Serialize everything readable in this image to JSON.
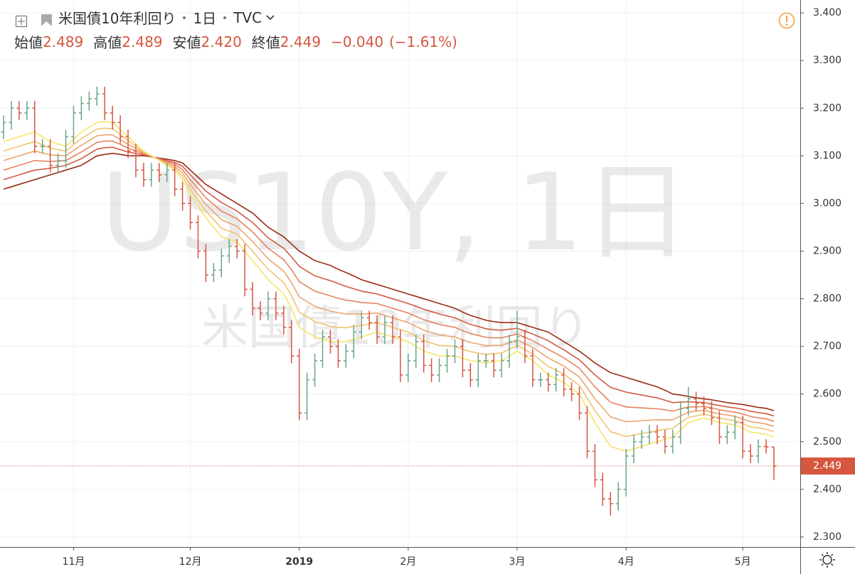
{
  "chart_data": {
    "type": "ohlc",
    "title": "米国債10年利回り",
    "interval": "1日",
    "source": "TVC",
    "watermark": "US10Y, 1日",
    "ohlc_legend": {
      "open_label": "始値",
      "open": 2.489,
      "high_label": "高値",
      "high": 2.489,
      "low_label": "安値",
      "low": {
        "value": 2.42,
        "label": "2.420"
      },
      "close_label": "終値",
      "close": 2.449,
      "change": {
        "value": -0.04,
        "label": "−0.040"
      },
      "change_pct": {
        "value": -1.61,
        "label": "(−1.61%)"
      }
    },
    "categories": [
      null,
      null,
      null,
      null,
      null,
      null,
      null,
      null,
      null,
      "11月",
      null,
      null,
      null,
      null,
      null,
      null,
      null,
      null,
      null,
      null,
      null,
      null,
      null,
      null,
      "12月",
      null,
      null,
      null,
      null,
      null,
      null,
      null,
      null,
      null,
      null,
      null,
      null,
      null,
      "2019",
      null,
      null,
      null,
      null,
      null,
      null,
      null,
      null,
      null,
      null,
      null,
      null,
      null,
      "2月",
      null,
      null,
      null,
      null,
      null,
      null,
      null,
      null,
      null,
      null,
      null,
      null,
      null,
      "3月",
      null,
      null,
      null,
      null,
      null,
      null,
      null,
      null,
      null,
      null,
      null,
      null,
      null,
      "4月",
      null,
      null,
      null,
      null,
      null,
      null,
      null,
      null,
      null,
      null,
      null,
      null,
      null,
      null,
      "5月",
      null,
      null,
      null,
      null
    ],
    "open": [
      3.15,
      3.17,
      3.2,
      3.19,
      3.2,
      3.12,
      3.12,
      3.08,
      3.09,
      3.14,
      3.19,
      3.21,
      3.22,
      3.23,
      3.19,
      3.17,
      3.14,
      3.11,
      3.07,
      3.05,
      3.07,
      3.06,
      3.07,
      3.03,
      3.0,
      2.96,
      2.9,
      2.85,
      2.86,
      2.89,
      2.91,
      2.9,
      2.82,
      2.78,
      2.77,
      2.8,
      2.77,
      2.74,
      2.68,
      2.56,
      2.63,
      2.67,
      2.72,
      2.7,
      2.67,
      2.69,
      2.73,
      2.76,
      2.75,
      2.72,
      2.75,
      2.72,
      2.64,
      2.67,
      2.71,
      2.66,
      2.64,
      2.66,
      2.68,
      2.7,
      2.65,
      2.63,
      2.67,
      2.67,
      2.65,
      2.67,
      2.71,
      2.72,
      2.68,
      2.63,
      2.63,
      2.62,
      2.64,
      2.61,
      2.6,
      2.56,
      2.48,
      2.42,
      2.38,
      2.37,
      2.4,
      2.47,
      2.5,
      2.51,
      2.52,
      2.51,
      2.49,
      2.51,
      2.57,
      2.59,
      2.58,
      2.57,
      2.55,
      2.51,
      2.52,
      2.54,
      2.48,
      2.47,
      2.49,
      2.489
    ],
    "high": [
      3.185,
      3.215,
      3.215,
      3.215,
      3.215,
      3.135,
      3.135,
      3.105,
      3.155,
      3.205,
      3.225,
      3.235,
      3.245,
      3.245,
      3.205,
      3.185,
      3.155,
      3.125,
      3.085,
      3.085,
      3.085,
      3.085,
      3.085,
      3.045,
      3.015,
      2.975,
      2.915,
      2.875,
      2.905,
      2.925,
      2.925,
      2.915,
      2.835,
      2.795,
      2.815,
      2.815,
      2.785,
      2.755,
      2.695,
      2.645,
      2.685,
      2.735,
      2.735,
      2.715,
      2.705,
      2.745,
      2.775,
      2.775,
      2.765,
      2.765,
      2.765,
      2.735,
      2.685,
      2.725,
      2.725,
      2.675,
      2.675,
      2.695,
      2.715,
      2.715,
      2.665,
      2.685,
      2.685,
      2.685,
      2.685,
      2.725,
      2.775,
      2.735,
      2.695,
      2.645,
      2.645,
      2.655,
      2.655,
      2.625,
      2.615,
      2.575,
      2.495,
      2.435,
      2.395,
      2.415,
      2.485,
      2.515,
      2.525,
      2.535,
      2.535,
      2.525,
      2.525,
      2.585,
      2.615,
      2.605,
      2.595,
      2.585,
      2.565,
      2.535,
      2.555,
      2.555,
      2.495,
      2.505,
      2.505,
      2.489
    ],
    "low": [
      3.135,
      3.155,
      3.175,
      3.175,
      3.105,
      3.105,
      3.065,
      3.065,
      3.075,
      3.125,
      3.175,
      3.195,
      3.205,
      3.175,
      3.155,
      3.125,
      3.095,
      3.055,
      3.035,
      3.035,
      3.045,
      3.045,
      3.015,
      2.985,
      2.945,
      2.885,
      2.835,
      2.835,
      2.845,
      2.875,
      2.885,
      2.805,
      2.765,
      2.755,
      2.755,
      2.755,
      2.725,
      2.665,
      2.545,
      2.545,
      2.615,
      2.655,
      2.685,
      2.655,
      2.655,
      2.675,
      2.715,
      2.735,
      2.705,
      2.705,
      2.705,
      2.625,
      2.625,
      2.655,
      2.645,
      2.625,
      2.625,
      2.645,
      2.665,
      2.635,
      2.615,
      2.615,
      2.655,
      2.635,
      2.635,
      2.655,
      2.695,
      2.665,
      2.615,
      2.615,
      2.605,
      2.605,
      2.595,
      2.585,
      2.545,
      2.465,
      2.405,
      2.365,
      2.345,
      2.355,
      2.385,
      2.455,
      2.485,
      2.495,
      2.495,
      2.475,
      2.475,
      2.495,
      2.555,
      2.565,
      2.555,
      2.535,
      2.495,
      2.495,
      2.505,
      2.465,
      2.455,
      2.455,
      2.475,
      2.42
    ],
    "close": [
      3.17,
      3.2,
      3.19,
      3.2,
      3.12,
      3.12,
      3.08,
      3.09,
      3.14,
      3.19,
      3.21,
      3.22,
      3.23,
      3.19,
      3.17,
      3.14,
      3.11,
      3.07,
      3.05,
      3.07,
      3.06,
      3.07,
      3.03,
      3.0,
      2.96,
      2.9,
      2.85,
      2.86,
      2.89,
      2.91,
      2.9,
      2.82,
      2.78,
      2.77,
      2.8,
      2.77,
      2.74,
      2.68,
      2.56,
      2.63,
      2.67,
      2.72,
      2.7,
      2.67,
      2.69,
      2.73,
      2.76,
      2.75,
      2.72,
      2.75,
      2.72,
      2.64,
      2.67,
      2.71,
      2.66,
      2.64,
      2.66,
      2.68,
      2.7,
      2.65,
      2.63,
      2.67,
      2.67,
      2.65,
      2.67,
      2.71,
      2.72,
      2.68,
      2.63,
      2.63,
      2.62,
      2.64,
      2.61,
      2.6,
      2.56,
      2.48,
      2.42,
      2.38,
      2.37,
      2.4,
      2.47,
      2.5,
      2.51,
      2.52,
      2.51,
      2.49,
      2.51,
      2.57,
      2.59,
      2.58,
      2.57,
      2.55,
      2.51,
      2.52,
      2.54,
      2.48,
      2.47,
      2.49,
      2.489,
      2.449
    ],
    "up_color": "#6aa584",
    "down_color": "#d5573f",
    "series": [
      {
        "color": "#f6e46a",
        "values": [
          3.13,
          3.135,
          3.14,
          3.145,
          3.15,
          3.14,
          3.13,
          3.125,
          3.12,
          3.135,
          3.15,
          3.16,
          3.17,
          3.172,
          3.17,
          3.155,
          3.14,
          3.125,
          3.11,
          3.1,
          3.09,
          3.08,
          3.07,
          3.05,
          3.02,
          2.995,
          2.97,
          2.95,
          2.93,
          2.925,
          2.92,
          2.9,
          2.88,
          2.86,
          2.84,
          2.825,
          2.81,
          2.78,
          2.74,
          2.73,
          2.72,
          2.715,
          2.71,
          2.71,
          2.71,
          2.715,
          2.72,
          2.725,
          2.73,
          2.725,
          2.72,
          2.715,
          2.71,
          2.7,
          2.69,
          2.685,
          2.68,
          2.68,
          2.68,
          2.675,
          2.67,
          2.668,
          2.665,
          2.668,
          2.67,
          2.68,
          2.69,
          2.68,
          2.67,
          2.655,
          2.64,
          2.632,
          2.625,
          2.612,
          2.6,
          2.57,
          2.54,
          2.515,
          2.49,
          2.485,
          2.48,
          2.485,
          2.49,
          2.495,
          2.5,
          2.505,
          2.51,
          2.525,
          2.54,
          2.545,
          2.55,
          2.545,
          2.54,
          2.538,
          2.535,
          2.528,
          2.52,
          2.518,
          2.515,
          2.51
        ]
      },
      {
        "color": "#f2c36e",
        "values": [
          3.11,
          3.115,
          3.12,
          3.125,
          3.13,
          3.123,
          3.116,
          3.113,
          3.11,
          3.123,
          3.136,
          3.146,
          3.156,
          3.158,
          3.157,
          3.145,
          3.132,
          3.12,
          3.108,
          3.1,
          3.091,
          3.083,
          3.074,
          3.057,
          3.03,
          3.007,
          2.984,
          2.966,
          2.948,
          2.942,
          2.936,
          2.918,
          2.9,
          2.881,
          2.862,
          2.848,
          2.834,
          2.807,
          2.772,
          2.762,
          2.752,
          2.747,
          2.742,
          2.74,
          2.739,
          2.742,
          2.744,
          2.747,
          2.75,
          2.745,
          2.74,
          2.735,
          2.73,
          2.721,
          2.712,
          2.707,
          2.702,
          2.701,
          2.7,
          2.694,
          2.689,
          2.686,
          2.683,
          2.685,
          2.686,
          2.694,
          2.702,
          2.693,
          2.684,
          2.671,
          2.658,
          2.65,
          2.642,
          2.63,
          2.618,
          2.592,
          2.565,
          2.543,
          2.521,
          2.516,
          2.511,
          2.514,
          2.517,
          2.52,
          2.523,
          2.526,
          2.528,
          2.54,
          2.551,
          2.554,
          2.558,
          2.554,
          2.549,
          2.547,
          2.544,
          2.538,
          2.531,
          2.529,
          2.526,
          2.521
        ]
      },
      {
        "color": "#eea46c",
        "values": [
          3.09,
          3.095,
          3.1,
          3.105,
          3.11,
          3.106,
          3.102,
          3.101,
          3.1,
          3.111,
          3.122,
          3.132,
          3.142,
          3.144,
          3.144,
          3.134,
          3.124,
          3.115,
          3.106,
          3.099,
          3.092,
          3.085,
          3.078,
          3.064,
          3.04,
          3.019,
          2.998,
          2.982,
          2.966,
          2.959,
          2.952,
          2.936,
          2.92,
          2.902,
          2.884,
          2.871,
          2.858,
          2.834,
          2.804,
          2.794,
          2.784,
          2.779,
          2.774,
          2.771,
          2.768,
          2.768,
          2.768,
          2.769,
          2.77,
          2.765,
          2.76,
          2.755,
          2.75,
          2.742,
          2.734,
          2.729,
          2.724,
          2.722,
          2.72,
          2.714,
          2.708,
          2.705,
          2.701,
          2.702,
          2.702,
          2.708,
          2.714,
          2.706,
          2.698,
          2.687,
          2.676,
          2.667,
          2.659,
          2.647,
          2.636,
          2.613,
          2.59,
          2.571,
          2.552,
          2.547,
          2.542,
          2.543,
          2.544,
          2.545,
          2.546,
          2.546,
          2.546,
          2.554,
          2.562,
          2.564,
          2.566,
          2.562,
          2.558,
          2.556,
          2.553,
          2.548,
          2.542,
          2.54,
          2.537,
          2.532
        ]
      },
      {
        "color": "#e8835f",
        "values": [
          3.07,
          3.075,
          3.08,
          3.085,
          3.09,
          3.089,
          3.088,
          3.089,
          3.09,
          3.099,
          3.108,
          3.118,
          3.128,
          3.131,
          3.131,
          3.124,
          3.116,
          3.11,
          3.104,
          3.099,
          3.093,
          3.088,
          3.082,
          3.071,
          3.05,
          3.031,
          3.012,
          2.998,
          2.984,
          2.976,
          2.968,
          2.954,
          2.94,
          2.923,
          2.906,
          2.894,
          2.882,
          2.861,
          2.836,
          2.826,
          2.816,
          2.811,
          2.806,
          2.801,
          2.797,
          2.795,
          2.792,
          2.791,
          2.79,
          2.785,
          2.78,
          2.775,
          2.77,
          2.763,
          2.756,
          2.751,
          2.746,
          2.743,
          2.74,
          2.733,
          2.727,
          2.723,
          2.719,
          2.718,
          2.718,
          2.722,
          2.726,
          2.719,
          2.712,
          2.703,
          2.694,
          2.685,
          2.676,
          2.665,
          2.654,
          2.635,
          2.615,
          2.599,
          2.583,
          2.578,
          2.573,
          2.572,
          2.571,
          2.57,
          2.569,
          2.567,
          2.564,
          2.569,
          2.573,
          2.573,
          2.574,
          2.571,
          2.567,
          2.564,
          2.562,
          2.558,
          2.553,
          2.55,
          2.548,
          2.543
        ]
      },
      {
        "color": "#d35a45",
        "values": [
          3.05,
          3.055,
          3.06,
          3.065,
          3.07,
          3.072,
          3.074,
          3.077,
          3.08,
          3.087,
          3.094,
          3.104,
          3.114,
          3.117,
          3.118,
          3.113,
          3.108,
          3.105,
          3.102,
          3.098,
          3.094,
          3.09,
          3.086,
          3.078,
          3.06,
          3.043,
          3.026,
          3.014,
          3.002,
          2.993,
          2.984,
          2.972,
          2.96,
          2.944,
          2.928,
          2.917,
          2.906,
          2.888,
          2.868,
          2.858,
          2.848,
          2.843,
          2.838,
          2.832,
          2.826,
          2.821,
          2.816,
          2.813,
          2.81,
          2.805,
          2.8,
          2.795,
          2.79,
          2.784,
          2.778,
          2.773,
          2.768,
          2.764,
          2.76,
          2.753,
          2.746,
          2.742,
          2.737,
          2.735,
          2.734,
          2.736,
          2.738,
          2.732,
          2.726,
          2.719,
          2.712,
          2.702,
          2.693,
          2.682,
          2.672,
          2.656,
          2.64,
          2.627,
          2.614,
          2.609,
          2.604,
          2.601,
          2.598,
          2.595,
          2.592,
          2.587,
          2.582,
          2.583,
          2.584,
          2.583,
          2.582,
          2.579,
          2.576,
          2.573,
          2.571,
          2.568,
          2.564,
          2.561,
          2.559,
          2.554
        ]
      },
      {
        "color": "#9c2a17",
        "values": [
          3.03,
          3.035,
          3.04,
          3.045,
          3.05,
          3.055,
          3.06,
          3.065,
          3.07,
          3.075,
          3.08,
          3.09,
          3.1,
          3.103,
          3.105,
          3.103,
          3.1,
          3.1,
          3.1,
          3.098,
          3.095,
          3.093,
          3.09,
          3.085,
          3.07,
          3.055,
          3.04,
          3.03,
          3.02,
          3.01,
          3.0,
          2.99,
          2.98,
          2.965,
          2.95,
          2.94,
          2.93,
          2.915,
          2.9,
          2.89,
          2.88,
          2.875,
          2.87,
          2.862,
          2.855,
          2.848,
          2.84,
          2.835,
          2.83,
          2.825,
          2.82,
          2.815,
          2.81,
          2.805,
          2.8,
          2.795,
          2.79,
          2.785,
          2.78,
          2.772,
          2.765,
          2.76,
          2.755,
          2.752,
          2.75,
          2.75,
          2.75,
          2.745,
          2.74,
          2.735,
          2.73,
          2.72,
          2.71,
          2.7,
          2.69,
          2.678,
          2.665,
          2.655,
          2.645,
          2.64,
          2.635,
          2.63,
          2.625,
          2.62,
          2.615,
          2.608,
          2.6,
          2.598,
          2.595,
          2.592,
          2.59,
          2.588,
          2.585,
          2.582,
          2.58,
          2.578,
          2.575,
          2.572,
          2.57,
          2.565
        ]
      }
    ],
    "ylim": [
      2.279,
      3.427
    ],
    "yticks": [
      {
        "value": 2.3,
        "label": "2.300"
      },
      {
        "value": 2.4,
        "label": "2.400"
      },
      {
        "value": 2.5,
        "label": "2.500"
      },
      {
        "value": 2.6,
        "label": "2.600"
      },
      {
        "value": 2.7,
        "label": "2.700"
      },
      {
        "value": 2.8,
        "label": "2.800"
      },
      {
        "value": 2.9,
        "label": "2.900"
      },
      {
        "value": 3.0,
        "label": "3.000"
      },
      {
        "value": 3.1,
        "label": "3.100"
      },
      {
        "value": 3.2,
        "label": "3.200"
      },
      {
        "value": 3.3,
        "label": "3.300"
      },
      {
        "value": 3.4,
        "label": "3.400"
      }
    ],
    "grid": true,
    "last_price_line": true
  }
}
